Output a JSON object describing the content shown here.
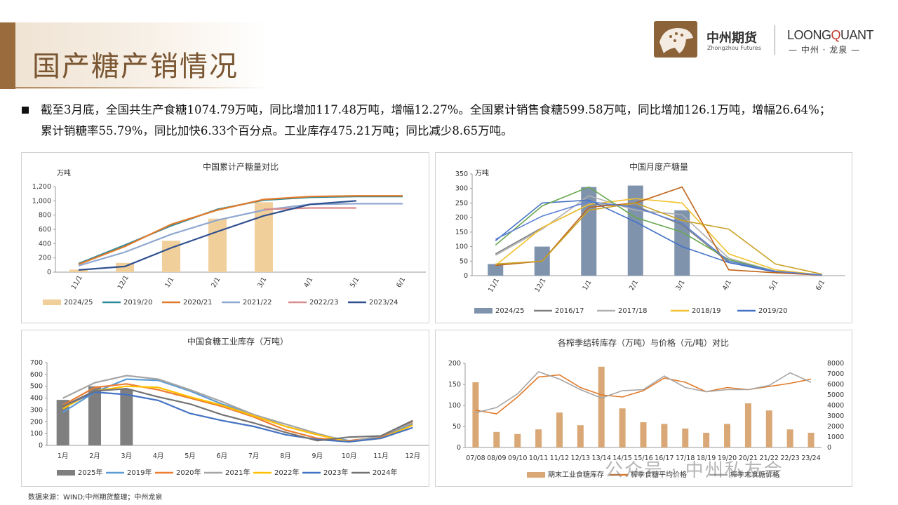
{
  "header": {
    "title": "国产糖产销情况",
    "logo_cn": "中州期货",
    "logo_en": "Zhongzhou Futures",
    "lq_pre": "LOONG",
    "lq_q": "Q",
    "lq_post": "UANT",
    "lq_sub": "— 中州 · 龙泉 —"
  },
  "summary": {
    "text": "截至3月底，全国共生产食糖1074.79万吨，同比增加117.48万吨，增幅12.27%。全国累计销售食糖599.58万吨，同比增加126.1万吨，增幅26.64%；累计销糖率55.79%，同比加快6.33个百分点。工业库存475.21万吨；同比减少8.65万吨。"
  },
  "footer": {
    "source": "数据来源：WIND;中州期货整理；中州龙泉"
  },
  "watermark": {
    "text": "公众号 · 中州私友会"
  },
  "chart_data": [
    {
      "id": "c1",
      "type": "bar",
      "title": "中国累计产糖量对比",
      "unit": "万吨",
      "categories": [
        "11/1",
        "12/1",
        "1/1",
        "2/1",
        "3/1",
        "4/1",
        "5/1",
        "6/1"
      ],
      "ylim": [
        0,
        1200
      ],
      "yticks": [
        0,
        200,
        400,
        600,
        800,
        1000,
        1200
      ],
      "ytick_labels": [
        "0",
        "200",
        "400",
        "600",
        "800",
        "1,000",
        "1,200"
      ],
      "bars": {
        "name": "2024/25",
        "color": "#f0cf9a",
        "values": [
          35,
          130,
          440,
          750,
          980,
          null,
          null,
          null
        ]
      },
      "series": [
        {
          "name": "2019/20",
          "color": "#2e8b9a",
          "values": [
            120,
            380,
            650,
            880,
            1010,
            1050,
            1060,
            1060
          ]
        },
        {
          "name": "2020/21",
          "color": "#e07a2a",
          "values": [
            110,
            360,
            670,
            870,
            1020,
            1060,
            1070,
            1070
          ]
        },
        {
          "name": "2021/22",
          "color": "#8fa8d0",
          "values": [
            90,
            280,
            530,
            730,
            870,
            950,
            960,
            960
          ]
        },
        {
          "name": "2022/23",
          "color": "#d98c8c",
          "values": [
            null,
            null,
            null,
            null,
            880,
            900,
            900,
            null
          ]
        },
        {
          "name": "2023/24",
          "color": "#2f4f8f",
          "values": [
            30,
            80,
            340,
            570,
            790,
            950,
            1000,
            null
          ]
        }
      ]
    },
    {
      "id": "c2",
      "type": "bar",
      "title": "中国月度产糖量",
      "unit": "万吨",
      "categories": [
        "11/1",
        "12/1",
        "1/1",
        "2/1",
        "3/1",
        "4/1",
        "5/1",
        "6/1"
      ],
      "ylim": [
        0,
        350
      ],
      "yticks": [
        0,
        50,
        100,
        150,
        200,
        250,
        300,
        350
      ],
      "ytick_labels": [
        "0",
        "50",
        "100",
        "150",
        "200",
        "250",
        "300",
        "350"
      ],
      "bars": {
        "name": "2024/25",
        "color": "#7f93ad",
        "values": [
          40,
          100,
          305,
          310,
          225,
          null,
          null,
          null
        ]
      },
      "series": [
        {
          "name": "2016/17",
          "color": "#808080",
          "values": [
            75,
            165,
            245,
            240,
            175,
            45,
            15,
            2
          ]
        },
        {
          "name": "2017/18",
          "color": "#b0b0b0",
          "values": [
            70,
            160,
            275,
            225,
            210,
            60,
            15,
            2
          ]
        },
        {
          "name": "2018/19",
          "color": "#f2c12e",
          "values": [
            35,
            165,
            245,
            265,
            250,
            75,
            20,
            2
          ]
        },
        {
          "name": "2019/20",
          "color": "#4472c4",
          "values": [
            120,
            250,
            260,
            185,
            100,
            45,
            12,
            2
          ]
        },
        {
          "name": "",
          "color": "#6aa84f",
          "values": [
            105,
            240,
            305,
            200,
            150,
            55,
            15,
            2
          ]
        },
        {
          "name": "",
          "color": "#c0651a",
          "values": [
            35,
            50,
            235,
            250,
            305,
            20,
            10,
            2
          ]
        },
        {
          "name": "",
          "color": "#c9a227",
          "values": [
            40,
            50,
            225,
            250,
            190,
            160,
            40,
            5
          ]
        },
        {
          "name": "",
          "color": "#5b7fd6",
          "values": [
            125,
            205,
            255,
            235,
            180,
            50,
            15,
            2
          ]
        }
      ]
    },
    {
      "id": "c3",
      "type": "bar",
      "title": "中国食糖工业库存（万吨）",
      "categories": [
        "1月",
        "2月",
        "3月",
        "4月",
        "5月",
        "6月",
        "7月",
        "8月",
        "9月",
        "10月",
        "11月",
        "12月"
      ],
      "ylim": [
        0,
        700
      ],
      "yticks": [
        0,
        100,
        200,
        300,
        400,
        500,
        600,
        700
      ],
      "ytick_labels": [
        "0",
        "100",
        "200",
        "300",
        "400",
        "500",
        "600",
        "700"
      ],
      "bars": {
        "name": "2025年",
        "color": "#7f7f7f",
        "values": [
          385,
          500,
          475,
          null,
          null,
          null,
          null,
          null,
          null,
          null,
          null,
          null
        ]
      },
      "series": [
        {
          "name": "2019年",
          "color": "#5b9bd5",
          "values": [
            280,
            450,
            560,
            550,
            460,
            350,
            260,
            160,
            90,
            40,
            70,
            180
          ]
        },
        {
          "name": "2020年",
          "color": "#ed7d31",
          "values": [
            340,
            490,
            520,
            470,
            400,
            330,
            240,
            130,
            60,
            40,
            70,
            200
          ]
        },
        {
          "name": "2021年",
          "color": "#a5a5a5",
          "values": [
            400,
            530,
            590,
            560,
            470,
            370,
            260,
            180,
            100,
            30,
            80,
            190
          ]
        },
        {
          "name": "2022年",
          "color": "#ffc000",
          "values": [
            310,
            460,
            500,
            490,
            410,
            340,
            250,
            160,
            90,
            30,
            60,
            170
          ]
        },
        {
          "name": "2023年",
          "color": "#4472c4",
          "values": [
            330,
            450,
            430,
            380,
            270,
            210,
            160,
            90,
            50,
            30,
            60,
            150
          ]
        },
        {
          "name": "2024年",
          "color": "#737373",
          "values": [
            330,
            460,
            480,
            410,
            350,
            260,
            190,
            110,
            40,
            70,
            80,
            210
          ]
        }
      ]
    },
    {
      "id": "c4",
      "type": "bar",
      "title": "各榨季结转库存（万吨）与价格（元/吨）对比",
      "categories": [
        "07/08",
        "08/09",
        "09/10",
        "10/11",
        "11/12",
        "12/13",
        "13/14",
        "14/15",
        "15/16",
        "16/17",
        "17/18",
        "18/19",
        "19/20",
        "20/21",
        "21/22",
        "22/23",
        "23/24"
      ],
      "ylim": [
        0,
        200
      ],
      "yticks": [
        0,
        50,
        100,
        150,
        200
      ],
      "ytick_labels": [
        "0",
        "50",
        "100",
        "150",
        "200"
      ],
      "y2lim": [
        0,
        8000
      ],
      "y2ticks": [
        0,
        1000,
        2000,
        3000,
        4000,
        5000,
        6000,
        7000,
        8000
      ],
      "y2tick_labels": [
        "0",
        "1000",
        "2000",
        "3000",
        "4000",
        "5000",
        "6000",
        "7000",
        "8000"
      ],
      "bars": {
        "name": "期末工业食糖库存",
        "color": "#d9a876",
        "values": [
          155,
          37,
          32,
          43,
          83,
          53,
          192,
          93,
          60,
          56,
          45,
          35,
          56,
          105,
          88,
          43,
          35
        ]
      },
      "series": [
        {
          "name": "榨季食糖平均价格",
          "color": "#e07a2a",
          "axis": "right",
          "values": [
            3550,
            3200,
            4800,
            6700,
            6900,
            5700,
            5000,
            4800,
            5400,
            6600,
            6200,
            5300,
            5700,
            5500,
            5800,
            6100,
            6500
          ]
        },
        {
          "name": "榨季末食糖价格",
          "color": "#a5a5a5",
          "axis": "right",
          "values": [
            3300,
            3800,
            5100,
            7200,
            6500,
            5500,
            4700,
            5400,
            5500,
            6800,
            5700,
            5300,
            5500,
            5500,
            5900,
            7100,
            6200
          ]
        }
      ]
    }
  ]
}
